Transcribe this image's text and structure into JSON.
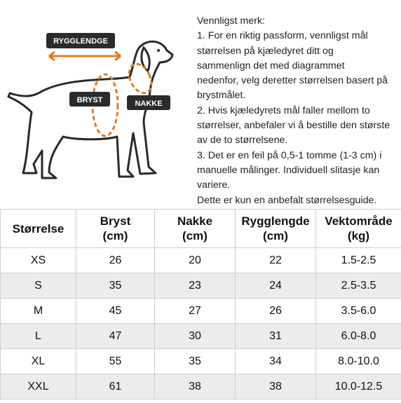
{
  "diagram": {
    "labels": {
      "back_length": "RYGGLENDGE",
      "chest": "BRYST",
      "neck": "NAKKE"
    }
  },
  "notes": [
    "Vennligst merk:",
    "1. For en riktig passform, vennligst mål",
    "størrelsen på kjæledyret ditt og",
    "sammenlign det med diagrammet",
    "nedenfor, velg deretter størrelsen basert på",
    "brystmålet.",
    "2. Hvis kjæledyrets mål faller mellom to",
    "størrelser, anbefaler vi å bestille den største",
    "av de to størrelsene.",
    "3. Det er en feil på 0,5-1 tomme (1-3 cm) i",
    "manuelle målinger. Individuell slitasje kan",
    "variere.",
    "Dette er kun en anbefalt størrelsesguide."
  ],
  "table": {
    "header": [
      [
        "Størrelse"
      ],
      [
        "Bryst",
        "(cm)"
      ],
      [
        "Nakke",
        "(cm)"
      ],
      [
        "Rygglengde",
        "(cm)"
      ],
      [
        "Vektområde",
        "(kg)"
      ]
    ],
    "rows": [
      [
        "XS",
        26,
        20,
        22,
        "1.5-2.5"
      ],
      [
        "S",
        35,
        23,
        24,
        "2.5-3.5"
      ],
      [
        "M",
        45,
        27,
        26,
        "3.5-6.0"
      ],
      [
        "L",
        47,
        30,
        31,
        "6.0-8.0"
      ],
      [
        "XL",
        55,
        35,
        34,
        "8.0-10.0"
      ],
      [
        "XXL",
        61,
        38,
        38,
        "10.0-12.5"
      ]
    ]
  }
}
